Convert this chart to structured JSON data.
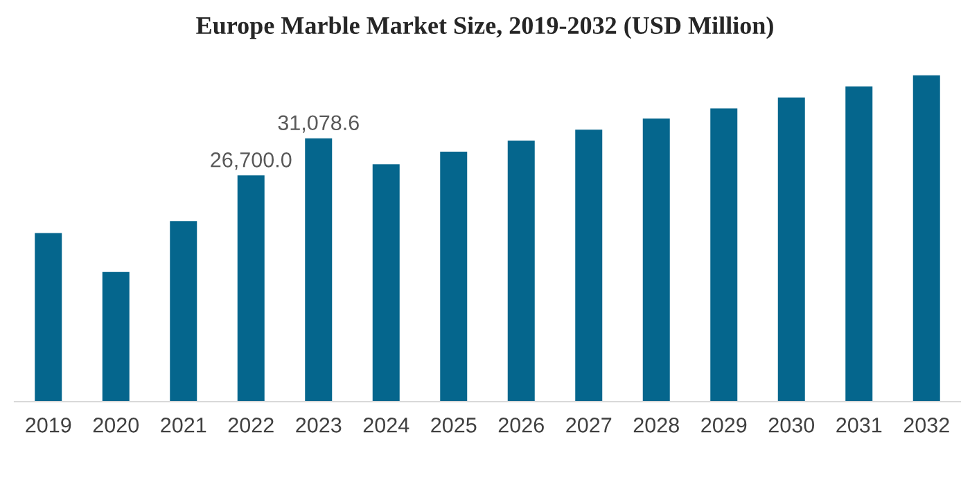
{
  "chart_data": {
    "type": "bar",
    "title": "Europe Marble Market Size, 2019-2032 (USD Million)",
    "categories": [
      "2019",
      "2020",
      "2021",
      "2022",
      "2023",
      "2024",
      "2025",
      "2026",
      "2027",
      "2028",
      "2029",
      "2030",
      "2031",
      "2032"
    ],
    "values": [
      19900,
      15300,
      21300,
      26700.0,
      31078.6,
      28000,
      29500,
      30800,
      32100,
      33400,
      34600,
      35900,
      37200,
      38500
    ],
    "value_labels": [
      null,
      null,
      null,
      "26,700.0",
      "31,078.6",
      null,
      null,
      null,
      null,
      null,
      null,
      null,
      null,
      null
    ],
    "color": "#05668d",
    "grid": false,
    "legend": false
  }
}
